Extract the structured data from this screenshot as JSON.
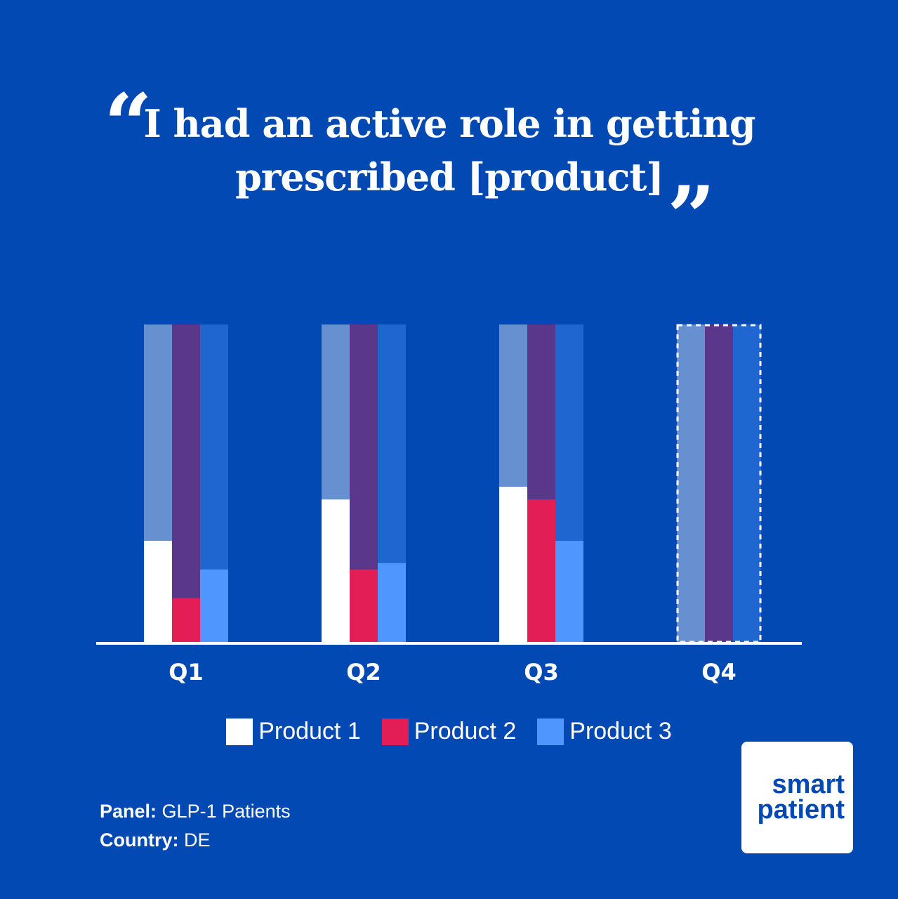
{
  "headline": {
    "line1": "I had an active role in getting",
    "line2": "prescribed [product]",
    "open_quote": "“",
    "close_quote": "”"
  },
  "chart_data": {
    "type": "bar",
    "categories": [
      "Q1",
      "Q2",
      "Q3",
      "Q4"
    ],
    "series": [
      {
        "name": "Product 1",
        "values": [
          32,
          45,
          49,
          null
        ]
      },
      {
        "name": "Product 2",
        "values": [
          14,
          23,
          45,
          null
        ]
      },
      {
        "name": "Product 3",
        "values": [
          23,
          25,
          32,
          null
        ]
      }
    ],
    "ylim": [
      0,
      100
    ],
    "background_bars": true,
    "pending_category": "Q4",
    "xlabel": "",
    "ylabel": ""
  },
  "colors": {
    "background": "#0249b3",
    "series": [
      "#ffffff",
      "#e31e56",
      "#4f96ff"
    ],
    "track": [
      "#6790d0",
      "#5b378c",
      "#1f66d1"
    ],
    "axis": "#ffffff"
  },
  "legend": {
    "items": [
      {
        "label": "Product 1",
        "color": "#ffffff"
      },
      {
        "label": "Product 2",
        "color": "#e31e56"
      },
      {
        "label": "Product 3",
        "color": "#4f96ff"
      }
    ]
  },
  "footer": {
    "panel_label": "Panel:",
    "panel_value": "GLP-1 Patients",
    "country_label": "Country:",
    "country_value": "DE"
  },
  "logo": {
    "line1": "smart",
    "line2": "patient"
  }
}
